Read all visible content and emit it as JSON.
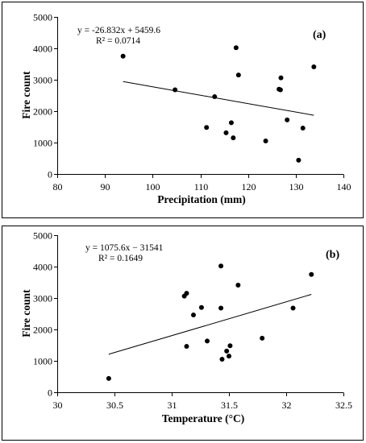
{
  "chart_data": [
    {
      "type": "scatter",
      "panel_label": "(a)",
      "xlabel": "Precipitation (mm)",
      "ylabel": "Fire count",
      "xlim": [
        80,
        140
      ],
      "ylim": [
        0,
        5000
      ],
      "xticks": [
        80,
        90,
        100,
        110,
        120,
        130,
        140
      ],
      "yticks": [
        0,
        1000,
        2000,
        3000,
        4000,
        5000
      ],
      "grid": false,
      "equation": "y = -26.832x + 5459.6",
      "r_squared": "R² = 0.0714",
      "trendline": {
        "slope": -26.832,
        "intercept": 5459.6,
        "x_range": [
          93.8,
          133.8
        ]
      },
      "points": [
        {
          "x": 93.8,
          "y": 3750
        },
        {
          "x": 104.7,
          "y": 2680
        },
        {
          "x": 111.3,
          "y": 1480
        },
        {
          "x": 113.0,
          "y": 2460
        },
        {
          "x": 115.4,
          "y": 1310
        },
        {
          "x": 116.5,
          "y": 1630
        },
        {
          "x": 116.9,
          "y": 1150
        },
        {
          "x": 117.5,
          "y": 4020
        },
        {
          "x": 118.0,
          "y": 3150
        },
        {
          "x": 123.7,
          "y": 1050
        },
        {
          "x": 126.5,
          "y": 2700
        },
        {
          "x": 126.8,
          "y": 2680
        },
        {
          "x": 126.9,
          "y": 3060
        },
        {
          "x": 128.2,
          "y": 1720
        },
        {
          "x": 130.6,
          "y": 440
        },
        {
          "x": 131.5,
          "y": 1460
        },
        {
          "x": 133.8,
          "y": 3410
        }
      ]
    },
    {
      "type": "scatter",
      "panel_label": "(b)",
      "xlabel": "Temperature (°C)",
      "ylabel": "Fire count",
      "xlim": [
        30,
        32.5
      ],
      "ylim": [
        0,
        5000
      ],
      "xticks": [
        30,
        30.5,
        31,
        31.5,
        32,
        32.5
      ],
      "yticks": [
        0,
        1000,
        2000,
        3000,
        4000,
        5000
      ],
      "grid": false,
      "equation": "y = 1075.6x − 31541",
      "r_squared": "R² = 0.1649",
      "trendline": {
        "slope": 1075.6,
        "intercept": -31541,
        "x_range": [
          30.45,
          32.22
        ]
      },
      "points": [
        {
          "x": 30.45,
          "y": 440
        },
        {
          "x": 31.11,
          "y": 3060
        },
        {
          "x": 31.13,
          "y": 3150
        },
        {
          "x": 31.13,
          "y": 1460
        },
        {
          "x": 31.19,
          "y": 2460
        },
        {
          "x": 31.26,
          "y": 2700
        },
        {
          "x": 31.31,
          "y": 1630
        },
        {
          "x": 31.43,
          "y": 2680
        },
        {
          "x": 31.43,
          "y": 4020
        },
        {
          "x": 31.44,
          "y": 1050
        },
        {
          "x": 31.48,
          "y": 1310
        },
        {
          "x": 31.5,
          "y": 1150
        },
        {
          "x": 31.51,
          "y": 1480
        },
        {
          "x": 31.58,
          "y": 3410
        },
        {
          "x": 31.79,
          "y": 1720
        },
        {
          "x": 32.06,
          "y": 2680
        },
        {
          "x": 32.22,
          "y": 3750
        }
      ]
    }
  ]
}
